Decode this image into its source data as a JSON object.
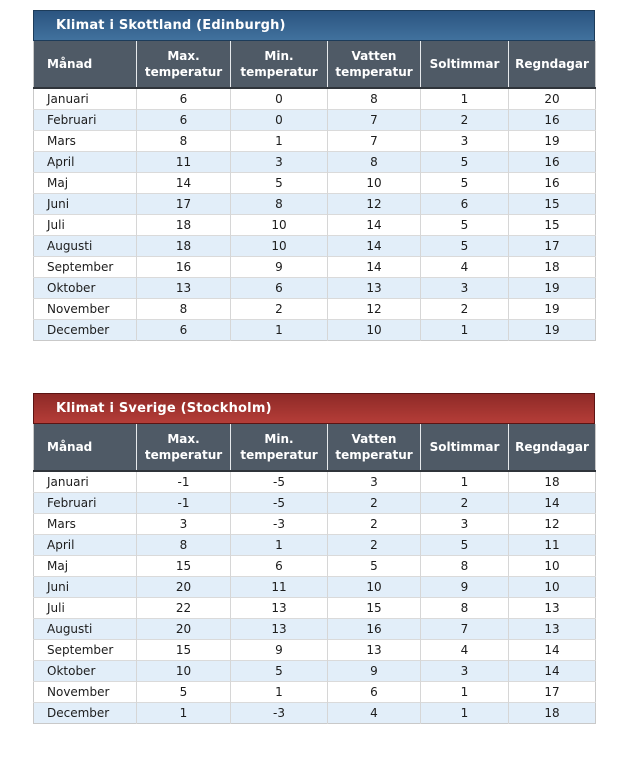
{
  "page": {
    "background": "#ffffff"
  },
  "tables": [
    {
      "title": "Klimat i Skottland (Edinburgh)",
      "theme": {
        "gradient_top": "#2b5480",
        "gradient_bottom": "#41719d",
        "border": "#1d3c5a",
        "header_bg": "#4f5a66",
        "alt_row_bg": "#e2eef9"
      },
      "columns": [
        "Månad",
        "Max.\ntemperatur",
        "Min.\ntemperatur",
        "Vatten\ntemperatur",
        "Soltimmar",
        "Regndagar"
      ],
      "rows": [
        [
          "Januari",
          6,
          0,
          8,
          1,
          20
        ],
        [
          "Februari",
          6,
          0,
          7,
          2,
          16
        ],
        [
          "Mars",
          8,
          1,
          7,
          3,
          19
        ],
        [
          "April",
          11,
          3,
          8,
          5,
          16
        ],
        [
          "Maj",
          14,
          5,
          10,
          5,
          16
        ],
        [
          "Juni",
          17,
          8,
          12,
          6,
          15
        ],
        [
          "Juli",
          18,
          10,
          14,
          5,
          15
        ],
        [
          "Augusti",
          18,
          10,
          14,
          5,
          17
        ],
        [
          "September",
          16,
          9,
          14,
          4,
          18
        ],
        [
          "Oktober",
          13,
          6,
          13,
          3,
          19
        ],
        [
          "November",
          8,
          2,
          12,
          2,
          19
        ],
        [
          "December",
          6,
          1,
          10,
          1,
          19
        ]
      ]
    },
    {
      "title": "Klimat i Sverige (Stockholm)",
      "theme": {
        "gradient_top": "#8e2a27",
        "gradient_bottom": "#b53d38",
        "border": "#5c1413",
        "header_bg": "#4f5a66",
        "alt_row_bg": "#e2eef9"
      },
      "columns": [
        "Månad",
        "Max.\ntemperatur",
        "Min.\ntemperatur",
        "Vatten\ntemperatur",
        "Soltimmar",
        "Regndagar"
      ],
      "rows": [
        [
          "Januari",
          -1,
          -5,
          3,
          1,
          18
        ],
        [
          "Februari",
          -1,
          -5,
          2,
          2,
          14
        ],
        [
          "Mars",
          3,
          -3,
          2,
          3,
          12
        ],
        [
          "April",
          8,
          1,
          2,
          5,
          11
        ],
        [
          "Maj",
          15,
          6,
          5,
          8,
          10
        ],
        [
          "Juni",
          20,
          11,
          10,
          9,
          10
        ],
        [
          "Juli",
          22,
          13,
          15,
          8,
          13
        ],
        [
          "Augusti",
          20,
          13,
          16,
          7,
          13
        ],
        [
          "September",
          15,
          9,
          13,
          4,
          14
        ],
        [
          "Oktober",
          10,
          5,
          9,
          3,
          14
        ],
        [
          "November",
          5,
          1,
          6,
          1,
          17
        ],
        [
          "December",
          1,
          -3,
          4,
          1,
          18
        ]
      ]
    }
  ]
}
